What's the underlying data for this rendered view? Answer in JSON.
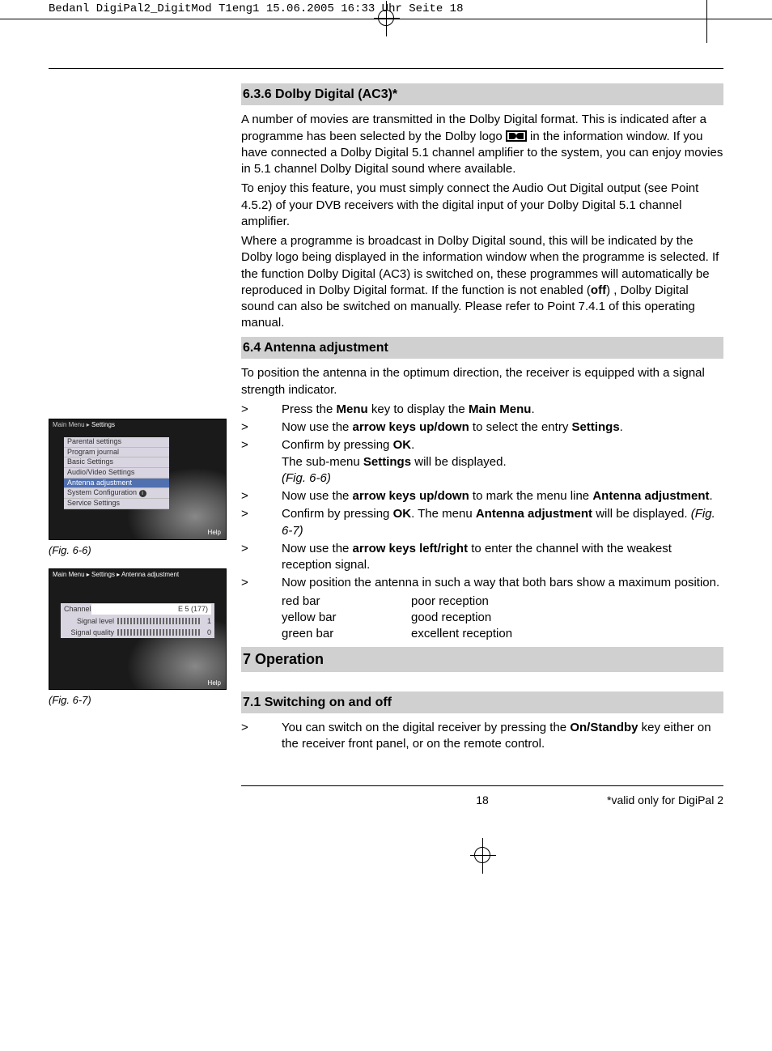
{
  "print_header": "Bedanl DigiPal2_DigitMod T1eng1   15.06.2005   16:33 Uhr   Seite 18",
  "s636": {
    "title": "6.3.6 Dolby Digital (AC3)*",
    "p1a": "A number of movies are transmitted in the Dolby Digital format. This is indicated after a programme has been selected by the Dolby logo ",
    "p1b": " in the information window. If you have connected a Dolby Digital 5.1 channel amplifier to the system, you can enjoy movies in 5.1 channel Dolby Digital sound where available.",
    "p2": "To enjoy this feature, you must simply connect the Audio Out Digital output (see Point 4.5.2) of your DVB receivers with the digital input of your Dolby Digital 5.1 channel amplifier.",
    "p3a": "Where a programme is broadcast in Dolby Digital sound, this will be indicated by the Dolby logo being displayed in the information window when the programme is selected. If the function Dolby Digital (AC3) is switched on, these programmes will automatically be reproduced in Dolby Digital format. If the function is not enabled (",
    "p3_off": "off",
    "p3b": ") , Dolby Digital sound can also be switched on manually. Please refer to Point 7.4.1 of this operating manual."
  },
  "s64": {
    "title": "6.4 Antenna adjustment",
    "intro": "To position the antenna in the optimum direction, the receiver is equipped with a signal strength indicator.",
    "steps": [
      {
        "html": "Press the <b>Menu</b> key to display the <b>Main Menu</b>."
      },
      {
        "html": "Now use the <b>arrow keys up/down</b> to select the entry <b>Settings</b>."
      },
      {
        "html": "Confirm by pressing <b>OK</b>.<br>The sub-menu <b>Settings</b> will be displayed.<br><span class=\"fig-ref\">(Fig. 6-6)</span>"
      },
      {
        "html": "Now use the <b>arrow keys up/down</b> to mark the menu line <b>Antenna adjustment</b>."
      },
      {
        "html": "Confirm by pressing <b>OK</b>. The menu <b>Antenna adjustment</b> will be displayed. <span class=\"fig-ref\">(Fig. 6-7)</span>"
      },
      {
        "html": "Now use the <b>arrow keys left/right</b> to enter the channel with the weakest reception signal."
      },
      {
        "html": "Now position the antenna in such a way that both bars show a maximum position."
      }
    ],
    "bars": [
      {
        "c1": "red bar",
        "c2": "poor reception"
      },
      {
        "c1": "yellow bar",
        "c2": "good reception"
      },
      {
        "c1": "green bar",
        "c2": "excellent reception"
      }
    ]
  },
  "s7": {
    "title": "7 Operation"
  },
  "s71": {
    "title": "7.1 Switching on and off",
    "step_html": "You can switch on the digital receiver by pressing the <b>On/Standby</b> key either on the receiver front panel, or on the remote control."
  },
  "fig66": {
    "caption": "(Fig. 6-6)",
    "breadcrumb_pre": "Main Menu ▸ ",
    "breadcrumb_cur": "Settings",
    "help": "Help",
    "items": [
      "Parental settings",
      "Program journal",
      "Basic Settings",
      "Audio/Video Settings",
      "Antenna adjustment",
      "System Configuration",
      "Service Settings"
    ],
    "selected_index": 4
  },
  "fig67": {
    "caption": "(Fig. 6-7)",
    "breadcrumb": "Main Menu ▸ Settings ▸ Antenna adjustment",
    "help": "Help",
    "channel_label": "Channel",
    "channel_value": "E 5 (177)",
    "rows": [
      {
        "label": "Signal level",
        "value": "1"
      },
      {
        "label": "Signal quality",
        "value": "0"
      }
    ]
  },
  "footer": {
    "page": "18",
    "note": "*valid only for DigiPal 2"
  }
}
